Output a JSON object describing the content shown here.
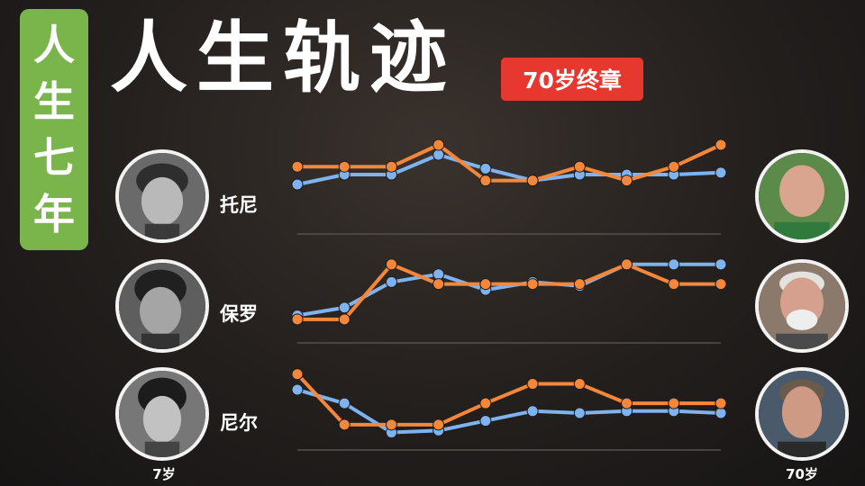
{
  "series_title": [
    "人",
    "生",
    "七",
    "年"
  ],
  "title": "人生轨迹",
  "tag": "70岁终章",
  "age_start_label": "7岁",
  "age_end_label": "70岁",
  "colors": {
    "blue": "#7eb3ef",
    "orange": "#f5873a",
    "green_badge": "#79b54a",
    "red_tag": "#e6382f"
  },
  "chart_data": [
    {
      "type": "line",
      "title": "托尼",
      "x": [
        1,
        2,
        3,
        4,
        5,
        6,
        7,
        8,
        9,
        10
      ],
      "series": [
        {
          "color": "#7eb3ef",
          "values": [
            4.5,
            5.0,
            5.0,
            6.0,
            5.3,
            4.7,
            5.0,
            5.0,
            5.0,
            5.1
          ]
        },
        {
          "color": "#f5873a",
          "values": [
            5.4,
            5.4,
            5.4,
            6.5,
            4.7,
            4.7,
            5.4,
            4.7,
            5.4,
            6.5
          ]
        }
      ],
      "ylim": [
        2,
        7
      ],
      "grid": false
    },
    {
      "type": "line",
      "title": "保罗",
      "x": [
        1,
        2,
        3,
        4,
        5,
        6,
        7,
        8,
        9,
        10
      ],
      "series": [
        {
          "color": "#7eb3ef",
          "values": [
            2.4,
            2.8,
            4.1,
            4.5,
            3.7,
            4.1,
            3.9,
            5.0,
            5.0,
            5.0
          ]
        },
        {
          "color": "#f5873a",
          "values": [
            2.2,
            2.2,
            5.0,
            4.0,
            4.0,
            4.0,
            4.0,
            5.0,
            4.0,
            4.0
          ]
        }
      ],
      "ylim": [
        1,
        6
      ],
      "grid": false
    },
    {
      "type": "line",
      "title": "尼尔",
      "x": [
        1,
        2,
        3,
        4,
        5,
        6,
        7,
        8,
        9,
        10
      ],
      "series": [
        {
          "color": "#7eb3ef",
          "values": [
            5.1,
            4.4,
            2.9,
            3.0,
            3.5,
            4.0,
            3.9,
            4.0,
            4.0,
            3.9
          ]
        },
        {
          "color": "#f5873a",
          "values": [
            5.9,
            3.3,
            3.3,
            3.3,
            4.4,
            5.4,
            5.4,
            4.4,
            4.4,
            4.4
          ]
        }
      ],
      "ylim": [
        2,
        7
      ],
      "grid": false
    }
  ]
}
